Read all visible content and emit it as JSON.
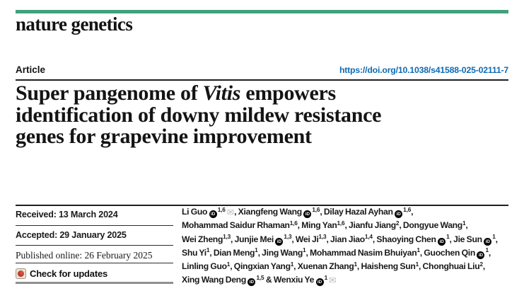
{
  "page": {
    "brand": "nature genetics"
  },
  "article_bar": {
    "label": "Article",
    "doi": "https://doi.org/10.1038/s41588-025-02111-7"
  },
  "title": {
    "lines": [
      [
        {
          "text": "Super pangenome of "
        },
        {
          "italic": "Vitis"
        },
        {
          "text": " empowers"
        }
      ],
      [
        {
          "text": "identification of downy mildew resistance"
        }
      ],
      [
        {
          "text": "genes for grapevine improvement"
        }
      ]
    ]
  },
  "meta": {
    "received": "Received: 13 March 2024",
    "accepted": "Accepted: 29 January 2025",
    "published": "Published online: 26 February 2025",
    "check_updates": "Check for updates"
  },
  "authors": {
    "lines": [
      [
        {
          "text": "Li Guo "
        },
        {
          "orcid": true
        },
        {
          "sup": "1,6"
        },
        {
          "mail": true
        },
        {
          "text": ", Xiangfeng Wang "
        },
        {
          "orcid": true
        },
        {
          "sup": "1,6"
        },
        {
          "text": ", Dilay Hazal Ayhan "
        },
        {
          "orcid": true
        },
        {
          "sup": "1,6"
        },
        {
          "text": ","
        }
      ],
      [
        {
          "text": "Mohammad Saidur Rhaman"
        },
        {
          "sup": "1,6"
        },
        {
          "text": ", Ming Yan"
        },
        {
          "sup": "1,6"
        },
        {
          "text": ", Jianfu Jiang"
        },
        {
          "sup": "2"
        },
        {
          "text": ", Dongyue Wang"
        },
        {
          "sup": "1"
        },
        {
          "text": ","
        }
      ],
      [
        {
          "text": "Wei Zheng"
        },
        {
          "sup": "1,3"
        },
        {
          "text": ", Junjie Mei "
        },
        {
          "orcid": true
        },
        {
          "sup": "1,3"
        },
        {
          "text": ", Wei Ji"
        },
        {
          "sup": "1,3"
        },
        {
          "text": ", Jian Jiao"
        },
        {
          "sup": "1,4"
        },
        {
          "text": ", Shaoying Chen "
        },
        {
          "orcid": true
        },
        {
          "sup": "1"
        },
        {
          "text": ", Jie Sun "
        },
        {
          "orcid": true
        },
        {
          "sup": "1"
        },
        {
          "text": ","
        }
      ],
      [
        {
          "text": "Shu Yi"
        },
        {
          "sup": "1"
        },
        {
          "text": ", Dian Meng"
        },
        {
          "sup": "1"
        },
        {
          "text": ", Jing Wang"
        },
        {
          "sup": "1"
        },
        {
          "text": ", Mohammad Nasim Bhuiyan"
        },
        {
          "sup": "1"
        },
        {
          "text": ", Guochen Qin "
        },
        {
          "orcid": true
        },
        {
          "sup": "1"
        },
        {
          "text": ","
        }
      ],
      [
        {
          "text": "Linling Guo"
        },
        {
          "sup": "1"
        },
        {
          "text": ", Qingxian Yang"
        },
        {
          "sup": "1"
        },
        {
          "text": ", Xuenan Zhang"
        },
        {
          "sup": "1"
        },
        {
          "text": ", Haisheng Sun"
        },
        {
          "sup": "1"
        },
        {
          "text": ", Chonghuai Liu"
        },
        {
          "sup": "2"
        },
        {
          "text": ","
        }
      ],
      [
        {
          "text": "Xing Wang Deng "
        },
        {
          "orcid": true
        },
        {
          "sup": "1,5"
        },
        {
          "text": " & Wenxiu Ye "
        },
        {
          "orcid": true
        },
        {
          "sup": "1"
        },
        {
          "mail": true
        }
      ]
    ]
  },
  "icons": {
    "orcid_label": "iD",
    "envelope_glyph": "✉"
  },
  "colors": {
    "brand_green": "#41a17d",
    "link_blue": "#0d6bb3",
    "text_black": "#161616",
    "rule_dark": "#1f1f1f",
    "rule_gray": "#8f8f8f",
    "envelope_gray": "#b9b9b9",
    "crossmark_red": "#c23931"
  }
}
